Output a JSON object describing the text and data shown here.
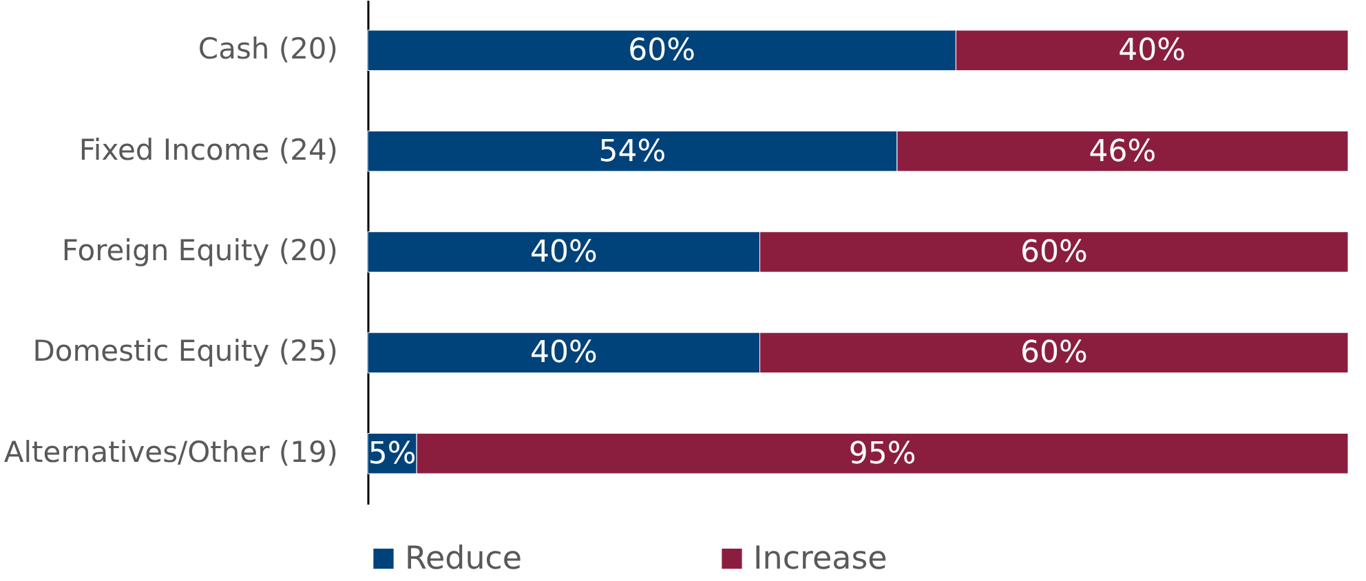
{
  "chart_data": {
    "type": "bar",
    "orientation": "horizontal",
    "stacked": true,
    "categories": [
      "Cash (20)",
      "Fixed Income (24)",
      "Foreign Equity (20)",
      "Domestic Equity (25)",
      "Alternatives/Other (19)"
    ],
    "xlim": [
      0,
      100
    ],
    "tick_labels": "y",
    "legend": "bottom",
    "series": [
      {
        "name": "Reduce",
        "color": "#00427a",
        "values": [
          60,
          54,
          40,
          40,
          5
        ],
        "value_labels": [
          "60%",
          "54%",
          "40%",
          "40%",
          "5%"
        ]
      },
      {
        "name": "Increase",
        "color": "#8b1e3f",
        "values": [
          40,
          46,
          60,
          60,
          95
        ],
        "value_labels": [
          "40%",
          "46%",
          "60%",
          "60%",
          "95%"
        ]
      }
    ]
  }
}
